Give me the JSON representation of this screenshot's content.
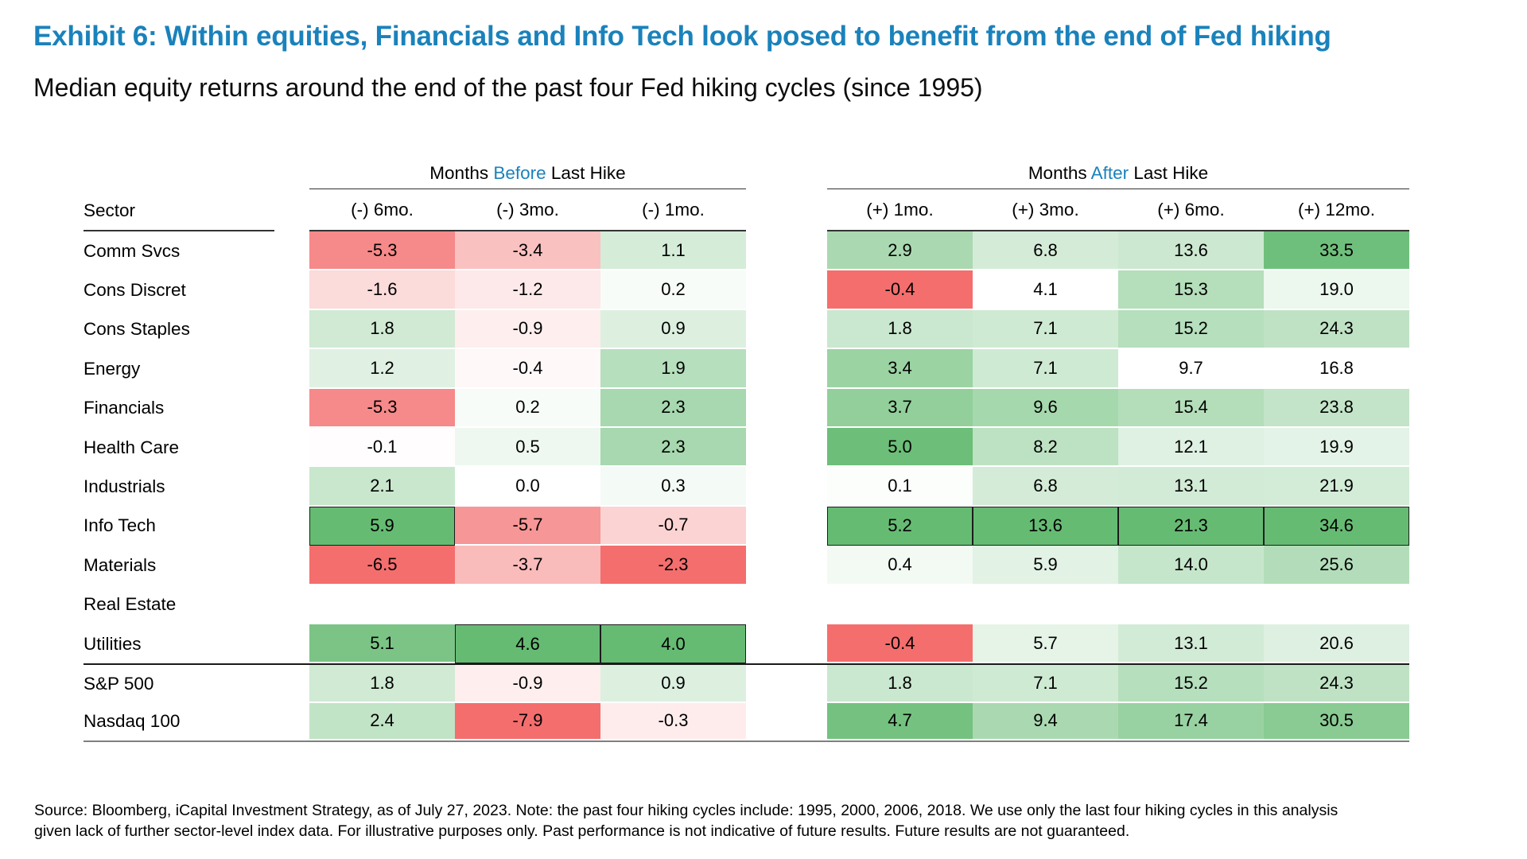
{
  "title": "Exhibit 6: Within equities, Financials and Info Tech look posed to benefit from the end of Fed hiking",
  "subtitle": "Median equity returns around the end of the past four Fed hiking cycles (since 1995)",
  "colors": {
    "accent_blue": "#1a82bb",
    "deep_red": "#f46e6e",
    "deep_green": "#66bb73"
  },
  "chart_data": {
    "type": "heatmap",
    "title": "Median equity returns around the end of the past four Fed hiking cycles (since 1995)",
    "group_headers": {
      "before": {
        "prefix": "Months ",
        "accent": "Before",
        "suffix": " Last Hike"
      },
      "after": {
        "prefix": "Months ",
        "accent": "After",
        "suffix": " Last Hike"
      }
    },
    "sector_header": "Sector",
    "before_columns": [
      "(-) 6mo.",
      "(-) 3mo.",
      "(-) 1mo."
    ],
    "after_columns": [
      "(+) 1mo.",
      "(+) 3mo.",
      "(+) 6mo.",
      "(+) 12mo."
    ],
    "rows": [
      {
        "sector": "Comm Svcs",
        "before": [
          -5.3,
          -3.4,
          1.1
        ],
        "after": [
          2.9,
          6.8,
          13.6,
          33.5
        ]
      },
      {
        "sector": "Cons Discret",
        "before": [
          -1.6,
          -1.2,
          0.2
        ],
        "after": [
          -0.4,
          4.1,
          15.3,
          19.0
        ]
      },
      {
        "sector": "Cons Staples",
        "before": [
          1.8,
          -0.9,
          0.9
        ],
        "after": [
          1.8,
          7.1,
          15.2,
          24.3
        ]
      },
      {
        "sector": "Energy",
        "before": [
          1.2,
          -0.4,
          1.9
        ],
        "after": [
          3.4,
          7.1,
          9.7,
          16.8
        ]
      },
      {
        "sector": "Financials",
        "before": [
          -5.3,
          0.2,
          2.3
        ],
        "after": [
          3.7,
          9.6,
          15.4,
          23.8
        ]
      },
      {
        "sector": "Health Care",
        "before": [
          -0.1,
          0.5,
          2.3
        ],
        "after": [
          5.0,
          8.2,
          12.1,
          19.9
        ]
      },
      {
        "sector": "Industrials",
        "before": [
          2.1,
          0.0,
          0.3
        ],
        "after": [
          0.1,
          6.8,
          13.1,
          21.9
        ]
      },
      {
        "sector": "Info Tech",
        "before": [
          5.9,
          -5.7,
          -0.7
        ],
        "after": [
          5.2,
          13.6,
          21.3,
          34.6
        ]
      },
      {
        "sector": "Materials",
        "before": [
          -6.5,
          -3.7,
          -2.3
        ],
        "after": [
          0.4,
          5.9,
          14.0,
          25.6
        ]
      },
      {
        "sector": "Real Estate",
        "before": null,
        "after": null
      },
      {
        "sector": "Utilities",
        "before": [
          5.1,
          4.6,
          4.0
        ],
        "after": [
          -0.4,
          5.7,
          13.1,
          20.6
        ]
      },
      {
        "sector": "S&P 500",
        "before": [
          1.8,
          -0.9,
          0.9
        ],
        "after": [
          1.8,
          7.1,
          15.2,
          24.3
        ]
      },
      {
        "sector": "Nasdaq 100",
        "before": [
          2.4,
          -7.9,
          -0.3
        ],
        "after": [
          4.7,
          9.4,
          17.4,
          30.5
        ]
      }
    ],
    "index_section_start": "S&P 500",
    "notes": {
      "column_max_highlight": "each column's maximum value cell is outlined in black",
      "color_scale": "per column: negatives shade red toward column min; positives shade green toward column max, white at 0 (or at column min when all column values are positive)"
    }
  },
  "footer": {
    "line1": "Source: Bloomberg, iCapital Investment Strategy, as of July 27, 2023. Note: the past four hiking cycles include: 1995, 2000, 2006, 2018. We use only the last four hiking cycles in this analysis",
    "line2": "given lack of further sector-level index data. For illustrative purposes only. Past performance is not indicative of future results. Future results are not guaranteed."
  }
}
